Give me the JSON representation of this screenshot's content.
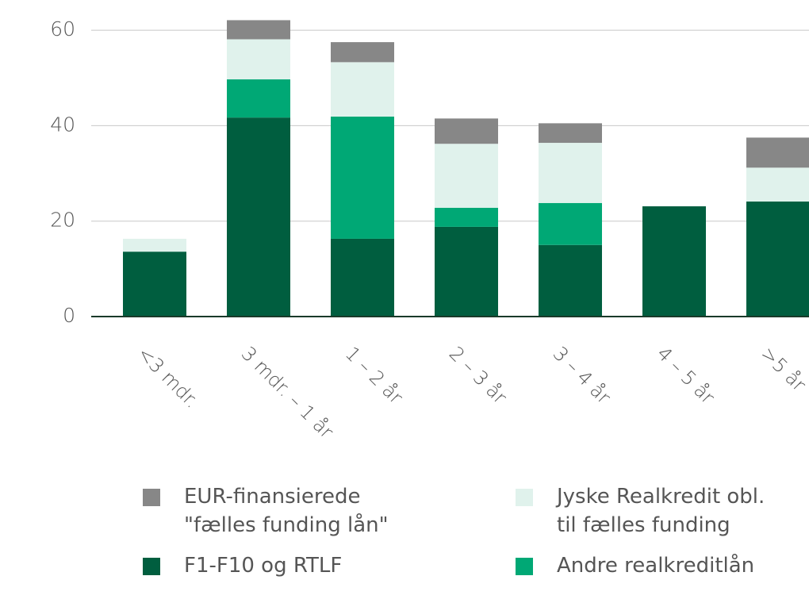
{
  "chart_data": {
    "type": "stacked_bar",
    "categories": [
      "<3 mdr.",
      "3 mdr. – 1 år",
      "1 – 2 år",
      "2 – 3 år",
      "3 – 4 år",
      "4 – 5 år",
      ">5 år"
    ],
    "series": [
      {
        "name": "F1-F10 og RTLF",
        "color": "#005e3f",
        "values": [
          13.6,
          41.7,
          16.3,
          18.8,
          15.0,
          23.1,
          24.1
        ]
      },
      {
        "name": "Andre realkreditlån",
        "color": "#00a875",
        "values": [
          0,
          8.0,
          25.6,
          4.0,
          8.8,
          0,
          0
        ]
      },
      {
        "name": "Jyske Realkredit obl.\ntil fælles funding",
        "color": "#e0f2ec",
        "values": [
          2.7,
          8.4,
          11.4,
          13.4,
          12.6,
          0,
          7.1
        ]
      },
      {
        "name": "EUR-finansierede\n \"fælles funding lån\"",
        "color": "#878787",
        "values": [
          0,
          4.0,
          4.2,
          5.3,
          4.1,
          0,
          6.3
        ]
      }
    ],
    "ylim": [
      0,
      65
    ],
    "yticks": [
      0,
      20,
      40,
      60
    ],
    "grid": true
  }
}
